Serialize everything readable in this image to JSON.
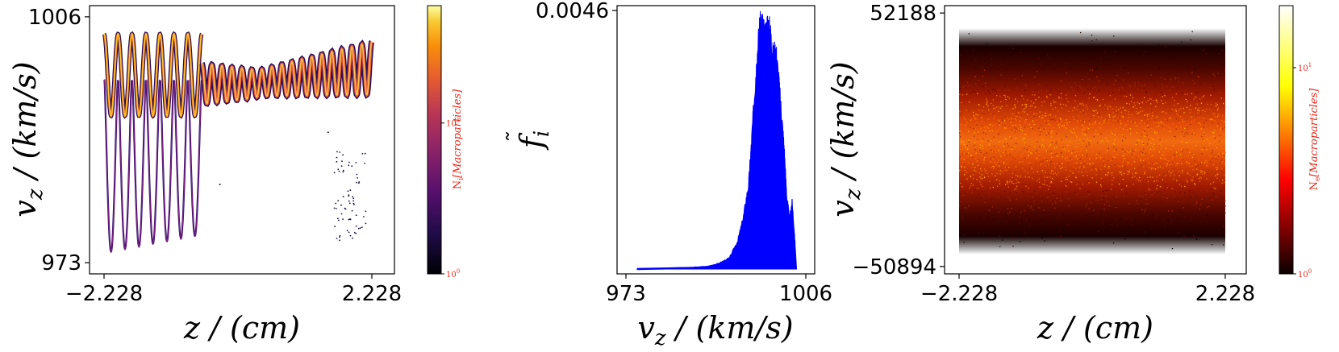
{
  "chart_data": [
    {
      "type": "heatmap",
      "description_free": true,
      "xlabel": "z / (cm)",
      "ylabel": "v_z / (km/s)",
      "x_ticks": [
        "−2.228",
        "2.228"
      ],
      "y_ticks": [
        "973",
        "1006"
      ],
      "xlim": [
        -2.228,
        2.228
      ],
      "ylim": [
        973,
        1006
      ],
      "colormap": "inferno",
      "colorbar": {
        "label": "N_i [Macroparticles]",
        "label_main": "N",
        "label_sub": "i",
        "label_rest": "[Macroparticles]",
        "scale": "log",
        "ticks": [
          {
            "base": "10",
            "exp": "0",
            "value": 1
          },
          {
            "base": "10",
            "exp": "1",
            "value": 10
          }
        ],
        "range": [
          1,
          60
        ]
      },
      "data": {
        "trapped_periods_left": 7,
        "untrapped_periods_right": 17,
        "trapped_center": 998.5,
        "trapped_amplitude_upper": 5.5,
        "trapped_min_left": 974.5,
        "band_center_right": 998.5,
        "band_amplitude_right": 3.0
      }
    },
    {
      "type": "area",
      "xlabel": "v_z / (km/s)",
      "ylabel": "f̃_i",
      "ylabel_main": "f",
      "ylabel_sub": "i",
      "x_ticks": [
        "973",
        "1006"
      ],
      "y_ticks": [
        "0.0046"
      ],
      "xlim": [
        973,
        1006
      ],
      "ylim": [
        0,
        0.0046
      ],
      "color": "#0000ff",
      "x": [
        975.0,
        985.0,
        988.0,
        990.0,
        992.0,
        993.5,
        994.5,
        995.5,
        996.0,
        996.5,
        997.0,
        997.5,
        998.0,
        998.5,
        999.0,
        999.5,
        1000.0,
        1000.5,
        1001.0,
        1001.5,
        1002.0,
        1002.5,
        1003.0,
        1003.5,
        1004.0,
        1004.3
      ],
      "y": [
        0.0,
        3e-05,
        5e-05,
        0.0001,
        0.0002,
        0.0005,
        0.0009,
        0.0015,
        0.0022,
        0.003,
        0.0037,
        0.0043,
        0.0044,
        0.0041,
        0.0044,
        0.0042,
        0.0038,
        0.0039,
        0.0034,
        0.0028,
        0.0022,
        0.0013,
        0.0009,
        0.0012,
        0.0005,
        0.0
      ]
    },
    {
      "type": "heatmap",
      "xlabel": "z / (cm)",
      "ylabel": "v_z / (km/s)",
      "x_ticks": [
        "−2.228",
        "2.228"
      ],
      "y_ticks": [
        "−50894",
        "52188"
      ],
      "xlim": [
        -2.228,
        2.228
      ],
      "ylim": [
        -50894,
        52188
      ],
      "colormap": "hot",
      "colorbar": {
        "label": "N_e [Macroparticles]",
        "label_main": "N",
        "label_sub": "e",
        "label_rest": "[Macroparticles]",
        "scale": "log",
        "ticks": [
          {
            "base": "10",
            "exp": "0",
            "value": 1
          },
          {
            "base": "10",
            "exp": "1",
            "value": 10
          }
        ],
        "range": [
          1,
          20
        ]
      },
      "data": {
        "band_center": 0,
        "band_half_width": 40000,
        "core_half_width": 18000
      }
    }
  ]
}
